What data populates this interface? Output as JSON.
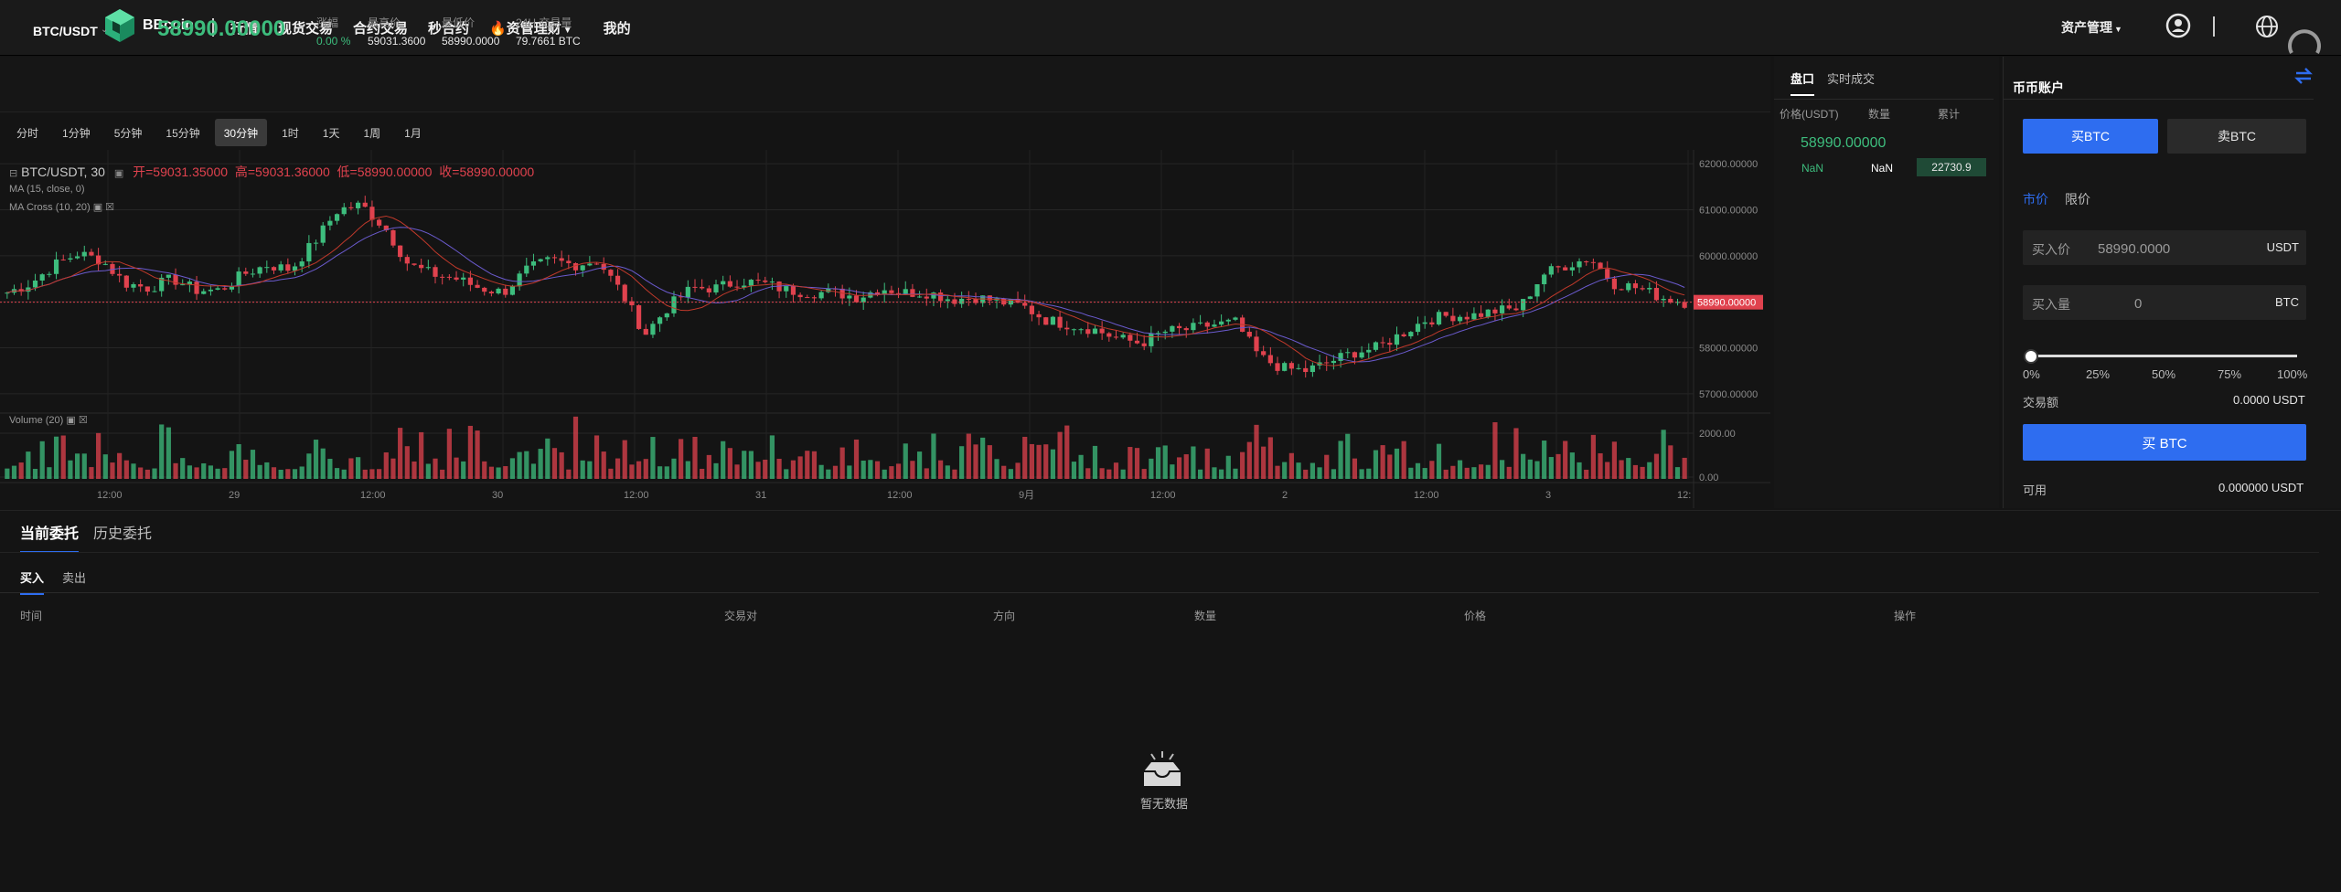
{
  "header": {
    "logo_text": "BBcoin",
    "nav": [
      {
        "label": "行情"
      },
      {
        "label": "现货交易"
      },
      {
        "label": "合约交易"
      },
      {
        "label": "秒合约"
      },
      {
        "label": "资管理财"
      },
      {
        "label": "我的"
      }
    ],
    "asset_menu": "资产管理"
  },
  "ticker": {
    "pair": "BTC/USDT",
    "price": "58990.00000",
    "stats": [
      {
        "label": "涨幅",
        "value": "0.00 %"
      },
      {
        "label": "最高价",
        "value": "59031.3600"
      },
      {
        "label": "最低价",
        "value": "58990.0000"
      },
      {
        "label": "24H 交易量",
        "value": "79.7661 BTC"
      }
    ]
  },
  "timeframes": [
    "分时",
    "1分钟",
    "5分钟",
    "15分钟",
    "30分钟",
    "1时",
    "1天",
    "1周",
    "1月"
  ],
  "timeframe_active": "30分钟",
  "chart_legend": {
    "symbol": "BTC/USDT, 30",
    "o": "开=59031.35000",
    "h": "高=59031.36000",
    "l": "低=58990.00000",
    "c": "收=58990.00000",
    "ma": "MA (15, close, 0)",
    "macross": "MA Cross (10, 20)",
    "volume": "Volume (20)",
    "price_tag": "58990.00000"
  },
  "chart_data": {
    "type": "candlestick",
    "price_axis": [
      "62000.00000",
      "61000.00000",
      "60000.00000",
      "59000.00000",
      "58000.00000",
      "57000.00000"
    ],
    "volume_axis": [
      "2000.00",
      "0.00"
    ],
    "x_labels": [
      "12:00",
      "29",
      "12:00",
      "30",
      "12:00",
      "31",
      "12:00",
      "9月",
      "12:00",
      "2",
      "12:00",
      "3",
      "12:"
    ],
    "ylim": [
      56700,
      62300
    ],
    "close_path": [
      59200,
      59400,
      59800,
      60050,
      59900,
      59400,
      59300,
      59500,
      59250,
      59250,
      59600,
      59800,
      59700,
      60300,
      61000,
      61100,
      60600,
      59800,
      59600,
      59500,
      59300,
      59200,
      59700,
      59900,
      59800,
      59900,
      59200,
      58300,
      58900,
      59300,
      59300,
      59450,
      59400,
      59250,
      59200,
      59200,
      59100,
      59300,
      59200,
      59200,
      59050,
      59100,
      59000,
      58900,
      58600,
      58500,
      58400,
      58200,
      58100,
      58350,
      58400,
      58500,
      58550,
      57800,
      57550,
      57500,
      57700,
      57900,
      58000,
      58300,
      58600,
      58700,
      58700,
      58800,
      58850,
      59600,
      59800,
      59950,
      59400,
      59300,
      59100,
      58990
    ],
    "current_price": 58990
  },
  "orderbook": {
    "tabs": [
      "盘口",
      "实时成交"
    ],
    "headers": [
      "价格(USDT)",
      "数量",
      "累计"
    ],
    "last_price": "58990.00000",
    "row": {
      "price": "NaN",
      "amount": "NaN",
      "total": "22730.9"
    }
  },
  "trade": {
    "title": "币币账户",
    "buy_tab": "买BTC",
    "sell_tab": "卖BTC",
    "order_types": [
      "市价",
      "限价"
    ],
    "price_label": "买入价",
    "price_value": "58990.0000",
    "price_unit": "USDT",
    "amount_label": "买入量",
    "amount_value": "0",
    "amount_unit": "BTC",
    "percents": [
      "0%",
      "25%",
      "50%",
      "75%",
      "100%"
    ],
    "slider_fraction": 0,
    "volume_label": "交易额",
    "volume_value": "0.0000 USDT",
    "buy_button": "买 BTC",
    "available_label": "可用",
    "available_value": "0.000000 USDT"
  },
  "orders": {
    "tabs": [
      "当前委托",
      "历史委托"
    ],
    "sub_tabs": [
      "买入",
      "卖出"
    ],
    "columns": [
      "时间",
      "交易对",
      "方向",
      "数量",
      "价格",
      "操作"
    ],
    "empty_text": "暂无数据"
  },
  "colors": {
    "up": "#3dbd7d",
    "down": "#e0424e",
    "accent": "#2e6df0"
  }
}
